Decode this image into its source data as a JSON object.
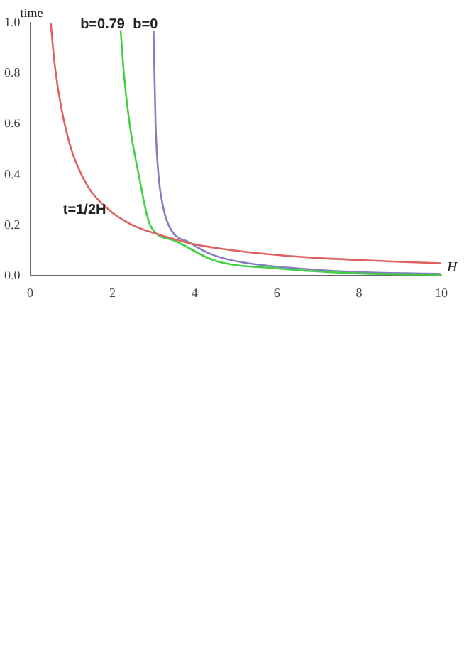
{
  "chart_data": {
    "type": "line",
    "xlabel": "H",
    "ylabel": "time",
    "xlim": [
      0,
      10
    ],
    "ylim": [
      0,
      1.0
    ],
    "xticks": [
      0,
      2,
      4,
      6,
      8,
      10
    ],
    "yticks": [
      {
        "value": 0,
        "label": "0.0"
      },
      {
        "value": 0.2,
        "label": "0.2"
      },
      {
        "value": 0.4,
        "label": "0.4"
      },
      {
        "value": 0.6,
        "label": "0.6"
      },
      {
        "value": 0.8,
        "label": "0.8"
      },
      {
        "value": 1,
        "label": "1.0"
      }
    ],
    "grid": false,
    "legend": false,
    "marker": "none",
    "line_style": "solid",
    "annotations": [
      "t=1/2H"
    ],
    "series": [
      {
        "color": "#e06060",
        "x": [
          0.5,
          0.6,
          0.75,
          1,
          1.25,
          1.5,
          2,
          2.5,
          3,
          4,
          5,
          6,
          7,
          8,
          9,
          10
        ],
        "values": [
          1,
          0.83,
          0.67,
          0.5,
          0.4,
          0.33,
          0.25,
          0.2,
          0.17,
          0.125,
          0.1,
          0.083,
          0.071,
          0.063,
          0.056,
          0.05
        ]
      },
      {
        "name": "b=0.79",
        "color": "#40d040",
        "x": [
          2.2,
          2.28,
          2.42,
          2.64,
          2.92,
          3.5,
          4.5,
          6,
          8,
          10
        ],
        "values": [
          0.97,
          0.8,
          0.6,
          0.4,
          0.2,
          0.14,
          0.06,
          0.03,
          0.01,
          0.005
        ]
      },
      {
        "name": "b=0",
        "color": "#8080c0",
        "x": [
          3.0,
          3.05,
          3.12,
          3.2,
          3.37,
          3.9,
          4.5,
          5.3,
          6.5,
          8,
          10
        ],
        "values": [
          0.97,
          0.6,
          0.4,
          0.3,
          0.2,
          0.13,
          0.08,
          0.05,
          0.03,
          0.015,
          0.008
        ]
      }
    ]
  }
}
